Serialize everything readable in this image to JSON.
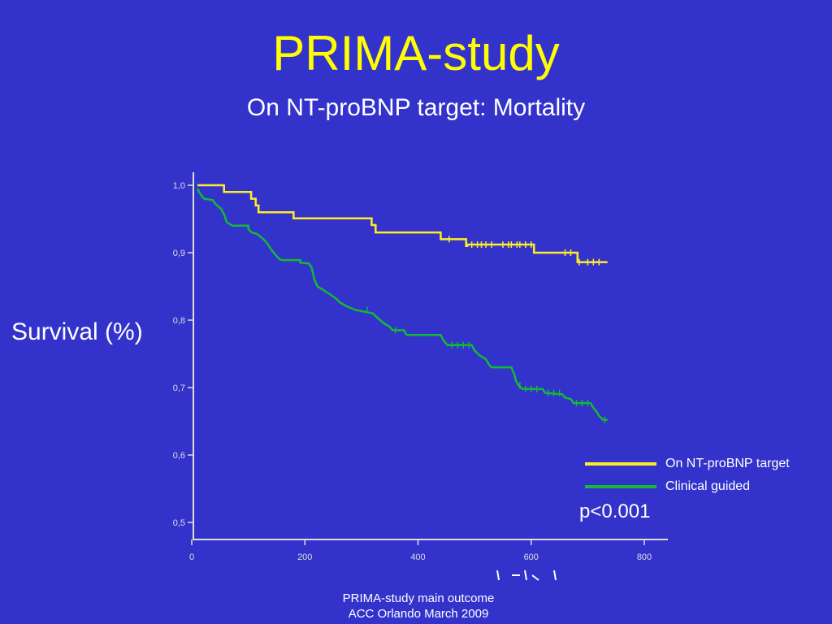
{
  "slide": {
    "title": "PRIMA-study",
    "subtitle": "On NT-proBNP target: Mortality",
    "y_axis_label": "Survival (%)",
    "p_value": "p<0.001",
    "footer_line1": "PRIMA-study main outcome",
    "footer_line2": "ACC Orlando March 2009"
  },
  "colors": {
    "background": "#3333cc",
    "title": "#ffff00",
    "text": "#ffffff",
    "series_target": "#ffee22",
    "series_clinical": "#11bb33",
    "axis": "#dddddd"
  },
  "chart_data": {
    "type": "line",
    "xlim": [
      0,
      800
    ],
    "ylim": [
      0.5,
      1.0
    ],
    "x_ticks": [
      0,
      200,
      400,
      600,
      800
    ],
    "x_tick_labels": [
      "0",
      "200",
      "400",
      "600",
      "800"
    ],
    "y_ticks": [
      0.5,
      0.6,
      0.7,
      0.8,
      0.9,
      1.0
    ],
    "y_tick_labels": [
      "0,5",
      "0,6",
      "0,7",
      "0,8",
      "0,9",
      "1,0"
    ],
    "ylabel": "Survival (%)",
    "step": true,
    "grid": false,
    "legend_position": "right",
    "series": [
      {
        "name": "On NT-proBNP target",
        "color": "#ffee22",
        "points": [
          [
            10,
            1.0
          ],
          [
            57,
            1.0
          ],
          [
            57,
            0.99
          ],
          [
            105,
            0.99
          ],
          [
            105,
            0.98
          ],
          [
            113,
            0.98
          ],
          [
            113,
            0.97
          ],
          [
            118,
            0.97
          ],
          [
            118,
            0.96
          ],
          [
            180,
            0.96
          ],
          [
            180,
            0.951
          ],
          [
            318,
            0.951
          ],
          [
            318,
            0.941
          ],
          [
            325,
            0.941
          ],
          [
            325,
            0.93
          ],
          [
            440,
            0.93
          ],
          [
            440,
            0.92
          ],
          [
            485,
            0.92
          ],
          [
            485,
            0.91
          ],
          [
            487,
            0.91
          ],
          [
            487,
            0.912
          ],
          [
            605,
            0.912
          ],
          [
            605,
            0.9
          ],
          [
            682,
            0.9
          ],
          [
            682,
            0.886
          ],
          [
            735,
            0.886
          ]
        ],
        "censor_x": [
          455,
          495,
          505,
          512,
          520,
          530,
          550,
          560,
          565,
          575,
          580,
          590,
          600,
          660,
          670,
          685,
          700,
          710,
          720
        ]
      },
      {
        "name": "Clinical guided",
        "color": "#11bb33",
        "points": [
          [
            10,
            0.995
          ],
          [
            13,
            0.99
          ],
          [
            17,
            0.985
          ],
          [
            22,
            0.98
          ],
          [
            37,
            0.978
          ],
          [
            42,
            0.972
          ],
          [
            52,
            0.965
          ],
          [
            58,
            0.955
          ],
          [
            62,
            0.945
          ],
          [
            72,
            0.94
          ],
          [
            100,
            0.94
          ],
          [
            100,
            0.935
          ],
          [
            106,
            0.93
          ],
          [
            115,
            0.928
          ],
          [
            127,
            0.92
          ],
          [
            134,
            0.913
          ],
          [
            140,
            0.905
          ],
          [
            147,
            0.898
          ],
          [
            153,
            0.892
          ],
          [
            158,
            0.889
          ],
          [
            192,
            0.889
          ],
          [
            192,
            0.885
          ],
          [
            207,
            0.884
          ],
          [
            212,
            0.878
          ],
          [
            214,
            0.87
          ],
          [
            217,
            0.86
          ],
          [
            222,
            0.85
          ],
          [
            232,
            0.845
          ],
          [
            245,
            0.838
          ],
          [
            255,
            0.832
          ],
          [
            262,
            0.826
          ],
          [
            275,
            0.82
          ],
          [
            290,
            0.815
          ],
          [
            320,
            0.81
          ],
          [
            330,
            0.802
          ],
          [
            340,
            0.795
          ],
          [
            350,
            0.79
          ],
          [
            355,
            0.785
          ],
          [
            375,
            0.785
          ],
          [
            380,
            0.778
          ],
          [
            440,
            0.778
          ],
          [
            445,
            0.77
          ],
          [
            452,
            0.763
          ],
          [
            495,
            0.763
          ],
          [
            500,
            0.755
          ],
          [
            510,
            0.747
          ],
          [
            520,
            0.742
          ],
          [
            525,
            0.735
          ],
          [
            530,
            0.73
          ],
          [
            565,
            0.73
          ],
          [
            570,
            0.72
          ],
          [
            573,
            0.71
          ],
          [
            578,
            0.703
          ],
          [
            585,
            0.698
          ],
          [
            620,
            0.698
          ],
          [
            625,
            0.692
          ],
          [
            655,
            0.69
          ],
          [
            660,
            0.685
          ],
          [
            670,
            0.683
          ],
          [
            675,
            0.677
          ],
          [
            705,
            0.677
          ],
          [
            710,
            0.67
          ],
          [
            715,
            0.665
          ],
          [
            720,
            0.658
          ],
          [
            727,
            0.652
          ],
          [
            735,
            0.652
          ]
        ],
        "censor_x": [
          310,
          360,
          460,
          470,
          480,
          490,
          580,
          590,
          600,
          610,
          630,
          640,
          650,
          680,
          690,
          700,
          730
        ]
      }
    ]
  }
}
